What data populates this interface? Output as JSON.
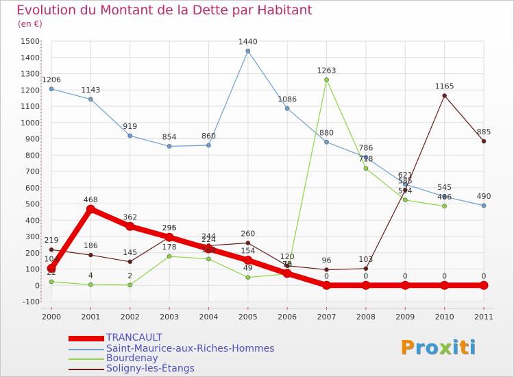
{
  "header": {
    "title": "Evolution du Montant de la Dette par Habitant",
    "unit": "(en €)"
  },
  "chart_data": {
    "type": "line",
    "title": "Evolution du Montant de la Dette par Habitant",
    "subtitle": "(en €)",
    "xlabel": "",
    "ylabel": "",
    "categories": [
      "2000",
      "2001",
      "2002",
      "2003",
      "2004",
      "2005",
      "2006",
      "2007",
      "2008",
      "2009",
      "2010",
      "2011"
    ],
    "ylim": [
      -100,
      1500
    ],
    "yticks": [
      -100,
      0,
      100,
      200,
      300,
      400,
      500,
      600,
      700,
      800,
      900,
      1000,
      1100,
      1200,
      1300,
      1400,
      1500
    ],
    "grid": true,
    "legend_position": "bottom-left",
    "series": [
      {
        "name": "TRANCAULT",
        "color": "#e80000",
        "values": [
          104,
          468,
          362,
          295,
          224,
          154,
          73,
          0,
          0,
          0,
          0,
          0
        ],
        "labels": [
          "104",
          "468",
          "362",
          "295",
          "224",
          "154",
          "73",
          "0",
          "0",
          "0",
          "0",
          "0"
        ]
      },
      {
        "name": "Saint-Maurice-aux-Riches-Hommes",
        "color": "#6aa0d8",
        "values": [
          1206,
          1143,
          919,
          854,
          860,
          1440,
          1086,
          880,
          786,
          621,
          545,
          490
        ],
        "labels": [
          "1206",
          "1143",
          "919",
          "854",
          "860",
          "1440",
          "1086",
          "880",
          "786",
          "621",
          "545",
          "490"
        ]
      },
      {
        "name": "Bourdenay",
        "color": "#8ad840",
        "values": [
          22,
          4,
          2,
          178,
          162,
          49,
          70,
          1263,
          718,
          524,
          486,
          null
        ],
        "labels": [
          "22",
          "4",
          "2",
          "178",
          "162",
          "49",
          "70",
          "1263",
          "718",
          "524",
          "486",
          ""
        ]
      },
      {
        "name": "Soligny-les-Étangs",
        "color": "#6b1a1a",
        "values": [
          219,
          186,
          145,
          296,
          244,
          260,
          120,
          96,
          103,
          585,
          1165,
          885
        ],
        "labels": [
          "219",
          "186",
          "145",
          "296",
          "244",
          "260",
          "120",
          "96",
          "103",
          "585",
          "1165",
          "885"
        ]
      }
    ]
  },
  "logo": {
    "text": "Proxiti",
    "colors": [
      "#f08a00",
      "#3a9ad9",
      "#3a9ad9",
      "#8ac43f",
      "#3a9ad9",
      "#f08a00",
      "#3a9ad9"
    ]
  }
}
